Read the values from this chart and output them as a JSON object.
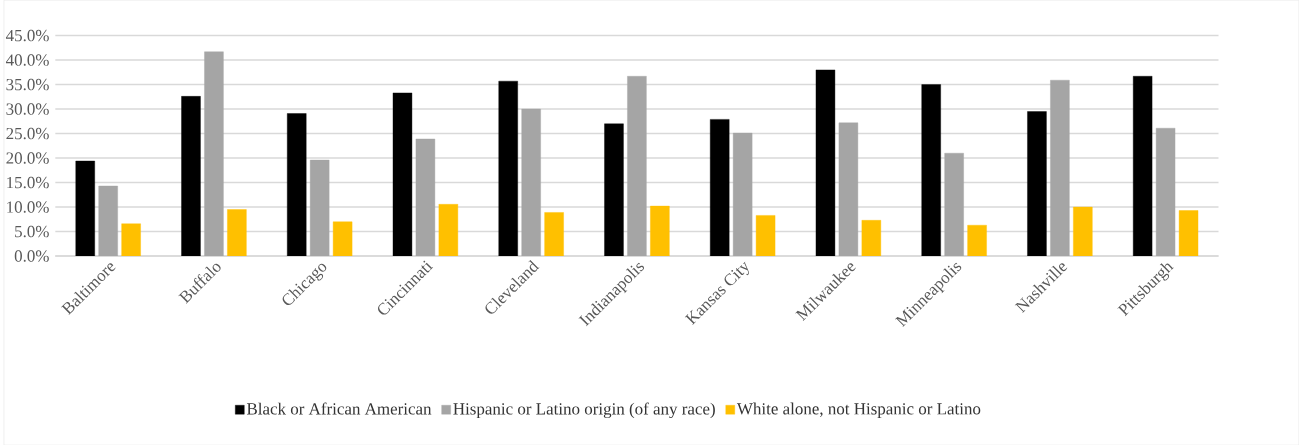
{
  "chart_data": {
    "type": "bar",
    "categories": [
      "Baltimore",
      "Buffalo",
      "Chicago",
      "Cincinnati",
      "Cleveland",
      "Indianapolis",
      "Kansas City",
      "Milwaukee",
      "Minneapolis",
      "Nashville",
      "Pittsburgh"
    ],
    "series": [
      {
        "name": "Black or African American",
        "color": "#000000",
        "values": [
          19.4,
          32.6,
          29.1,
          33.3,
          35.7,
          27.0,
          27.9,
          38.0,
          35.0,
          29.5,
          36.7
        ]
      },
      {
        "name": "Hispanic or Latino origin (of any race)",
        "color": "#a5a5a5",
        "values": [
          14.3,
          41.7,
          19.6,
          23.9,
          30.0,
          36.7,
          25.1,
          27.2,
          21.0,
          35.9,
          26.1
        ]
      },
      {
        "name": "White alone, not Hispanic or Latino",
        "color": "#ffc000",
        "values": [
          6.6,
          9.5,
          7.0,
          10.6,
          8.9,
          10.2,
          8.3,
          7.3,
          6.3,
          10.0,
          9.3
        ]
      }
    ],
    "ylim": [
      0,
      45
    ],
    "yticks": [
      {
        "value": 0,
        "label": "0.0%"
      },
      {
        "value": 5,
        "label": "5.0%"
      },
      {
        "value": 10,
        "label": "10.0%"
      },
      {
        "value": 15,
        "label": "15.0%"
      },
      {
        "value": 20,
        "label": "20.0%"
      },
      {
        "value": 25,
        "label": "25.0%"
      },
      {
        "value": 30,
        "label": "30.0%"
      },
      {
        "value": 35,
        "label": "35.0%"
      },
      {
        "value": 40,
        "label": "40.0%"
      },
      {
        "value": 45,
        "label": "45.0%"
      }
    ],
    "grid": "y",
    "legend": "bottom"
  }
}
